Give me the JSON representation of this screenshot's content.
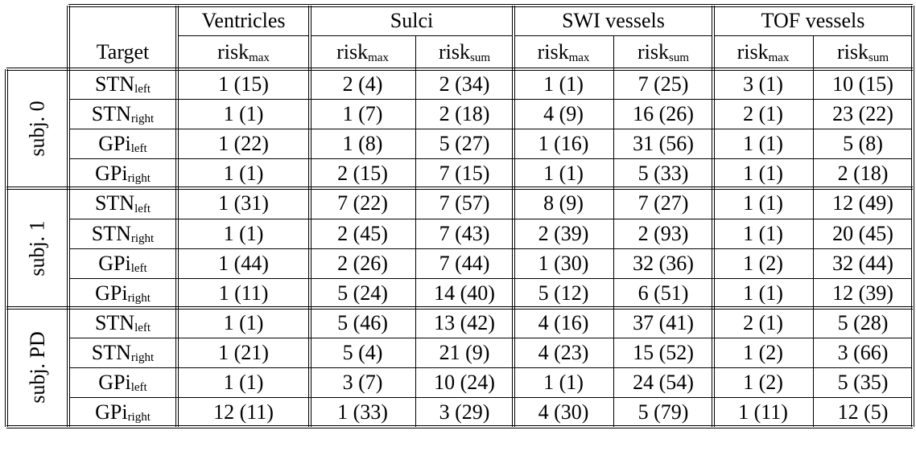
{
  "table": {
    "corner_header": "",
    "target_header": "Target",
    "column_groups": [
      {
        "label": "Ventricles",
        "metrics": [
          {
            "base": "risk",
            "sub": "max"
          }
        ]
      },
      {
        "label": "Sulci",
        "metrics": [
          {
            "base": "risk",
            "sub": "max"
          },
          {
            "base": "risk",
            "sub": "sum"
          }
        ]
      },
      {
        "label": "SWI vessels",
        "metrics": [
          {
            "base": "risk",
            "sub": "max"
          },
          {
            "base": "risk",
            "sub": "sum"
          }
        ]
      },
      {
        "label": "TOF vessels",
        "metrics": [
          {
            "base": "risk",
            "sub": "max"
          },
          {
            "base": "risk",
            "sub": "sum"
          }
        ]
      }
    ],
    "groups": [
      {
        "label": "subj. 0",
        "rows": [
          {
            "target": "STN",
            "side": "left",
            "values": [
              "1 (15)",
              "2 (4)",
              "2 (34)",
              "1 (1)",
              "7 (25)",
              "3 (1)",
              "10 (15)"
            ]
          },
          {
            "target": "STN",
            "side": "right",
            "values": [
              "1 (1)",
              "1 (7)",
              "2 (18)",
              "4 (9)",
              "16 (26)",
              "2 (1)",
              "23 (22)"
            ]
          },
          {
            "target": "GPi",
            "side": "left",
            "values": [
              "1 (22)",
              "1 (8)",
              "5 (27)",
              "1 (16)",
              "31 (56)",
              "1 (1)",
              "5 (8)"
            ]
          },
          {
            "target": "GPi",
            "side": "right",
            "values": [
              "1 (1)",
              "2 (15)",
              "7 (15)",
              "1 (1)",
              "5 (33)",
              "1 (1)",
              "2 (18)"
            ]
          }
        ]
      },
      {
        "label": "subj. 1",
        "rows": [
          {
            "target": "STN",
            "side": "left",
            "values": [
              "1 (31)",
              "7 (22)",
              "7 (57)",
              "8 (9)",
              "7 (27)",
              "1 (1)",
              "12 (49)"
            ]
          },
          {
            "target": "STN",
            "side": "right",
            "values": [
              "1 (1)",
              "2 (45)",
              "7 (43)",
              "2 (39)",
              "2 (93)",
              "1 (1)",
              "20 (45)"
            ]
          },
          {
            "target": "GPi",
            "side": "left",
            "values": [
              "1 (44)",
              "2 (26)",
              "7 (44)",
              "1 (30)",
              "32 (36)",
              "1 (2)",
              "32 (44)"
            ]
          },
          {
            "target": "GPi",
            "side": "right",
            "values": [
              "1 (11)",
              "5 (24)",
              "14 (40)",
              "5 (12)",
              "6 (51)",
              "1 (1)",
              "12 (39)"
            ]
          }
        ]
      },
      {
        "label": "subj. PD",
        "rows": [
          {
            "target": "STN",
            "side": "left",
            "values": [
              "1 (1)",
              "5 (46)",
              "13 (42)",
              "4 (16)",
              "37 (41)",
              "2 (1)",
              "5 (28)"
            ]
          },
          {
            "target": "STN",
            "side": "right",
            "values": [
              "1 (21)",
              "5 (4)",
              "21 (9)",
              "4 (23)",
              "15 (52)",
              "1 (2)",
              "3 (66)"
            ]
          },
          {
            "target": "GPi",
            "side": "left",
            "values": [
              "1 (1)",
              "3 (7)",
              "10 (24)",
              "1 (1)",
              "24 (54)",
              "1 (2)",
              "5 (35)"
            ]
          },
          {
            "target": "GPi",
            "side": "right",
            "values": [
              "12 (11)",
              "1 (33)",
              "3 (29)",
              "4 (30)",
              "5 (79)",
              "1 (11)",
              "12 (5)"
            ]
          }
        ]
      }
    ]
  }
}
